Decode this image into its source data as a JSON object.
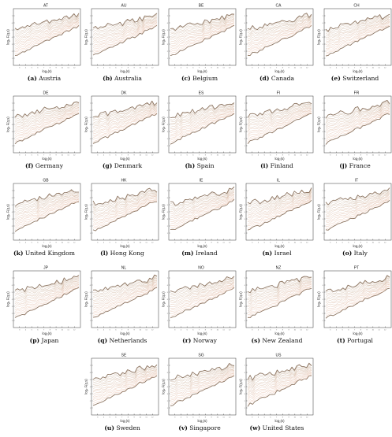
{
  "figure": {
    "axis_x_label": "log₂(s)",
    "axis_y_label": "log₂ F(q,s)"
  },
  "colors": {
    "curve_low": "#f2c9b6",
    "curve_high": "#cbb9a6",
    "bold_curve": "#8c7460",
    "axis": "#333333"
  },
  "chart_data": [
    {
      "code": "AT",
      "letter": "(a)",
      "country": "Austria",
      "type": "line"
    },
    {
      "code": "AU",
      "letter": "(b)",
      "country": "Australia",
      "type": "line"
    },
    {
      "code": "BE",
      "letter": "(c)",
      "country": "Belgium",
      "type": "line"
    },
    {
      "code": "CA",
      "letter": "(d)",
      "country": "Canada",
      "type": "line"
    },
    {
      "code": "CH",
      "letter": "(e)",
      "country": "Switzerland",
      "type": "line"
    },
    {
      "code": "DE",
      "letter": "(f)",
      "country": "Germany",
      "type": "line"
    },
    {
      "code": "DK",
      "letter": "(g)",
      "country": "Denmark",
      "type": "line"
    },
    {
      "code": "ES",
      "letter": "(h)",
      "country": "Spain",
      "type": "line"
    },
    {
      "code": "FI",
      "letter": "(i)",
      "country": "Finland",
      "type": "line"
    },
    {
      "code": "FR",
      "letter": "(j)",
      "country": "France",
      "type": "line"
    },
    {
      "code": "GB",
      "letter": "(k)",
      "country": "United Kingdom",
      "type": "line"
    },
    {
      "code": "HK",
      "letter": "(l)",
      "country": "Hong Kong",
      "type": "line"
    },
    {
      "code": "IE",
      "letter": "(m)",
      "country": "Ireland",
      "type": "line"
    },
    {
      "code": "IL",
      "letter": "(n)",
      "country": "Israel",
      "type": "line"
    },
    {
      "code": "IT",
      "letter": "(o)",
      "country": "Italy",
      "type": "line"
    },
    {
      "code": "JP",
      "letter": "(p)",
      "country": "Japan",
      "type": "line"
    },
    {
      "code": "NL",
      "letter": "(q)",
      "country": "Netherlands",
      "type": "line"
    },
    {
      "code": "NO",
      "letter": "(r)",
      "country": "Norway",
      "type": "line"
    },
    {
      "code": "NZ",
      "letter": "(s)",
      "country": "New Zealand",
      "type": "line"
    },
    {
      "code": "PT",
      "letter": "(t)",
      "country": "Portugal",
      "type": "line"
    },
    {
      "code": "SE",
      "letter": "(u)",
      "country": "Sweden",
      "type": "line"
    },
    {
      "code": "SG",
      "letter": "(v)",
      "country": "Singapore",
      "type": "line"
    },
    {
      "code": "US",
      "letter": "(w)",
      "country": "United States",
      "type": "line"
    }
  ]
}
